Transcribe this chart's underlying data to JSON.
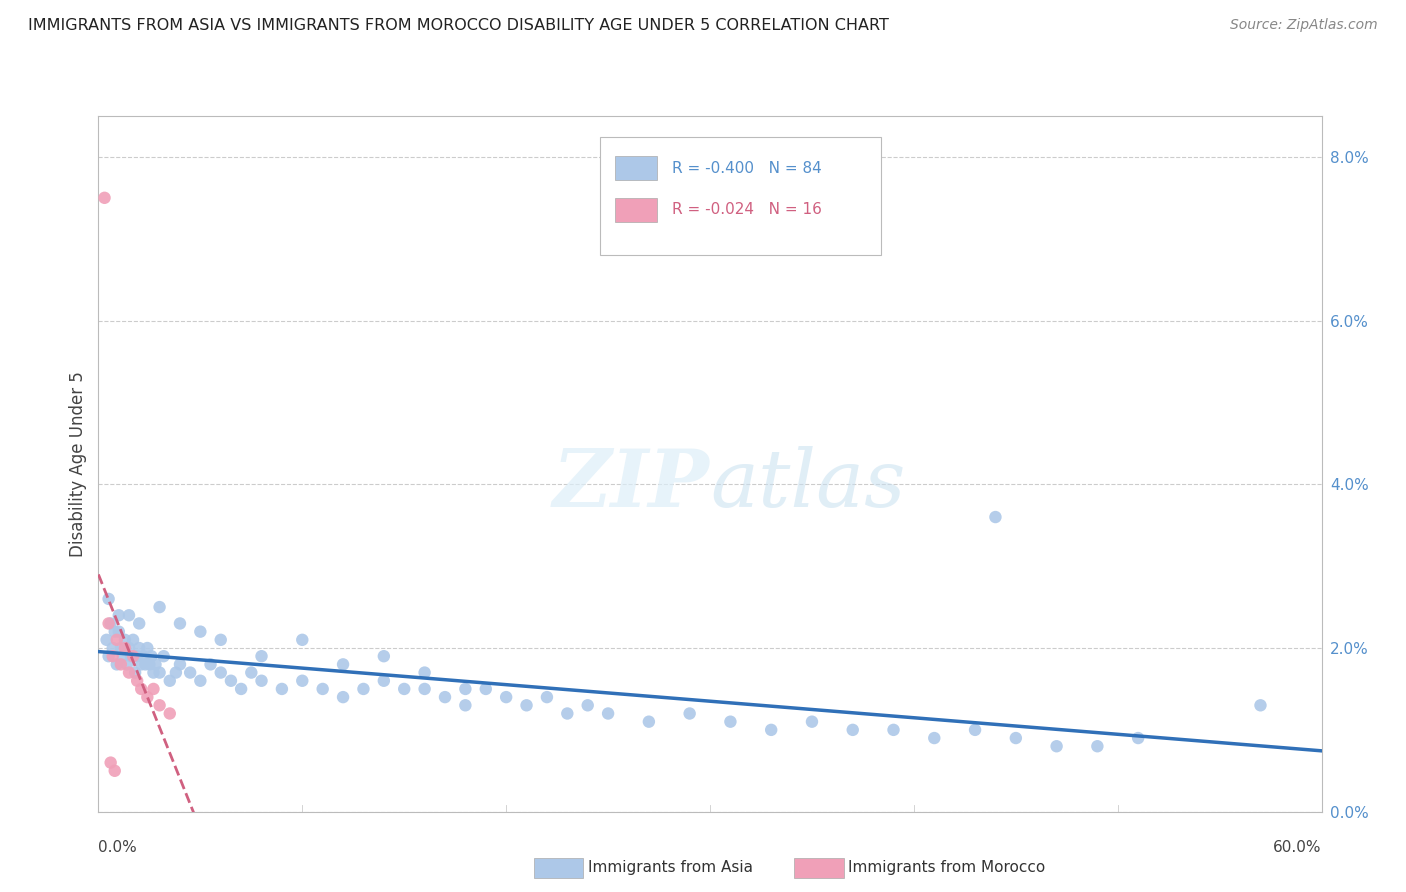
{
  "title": "IMMIGRANTS FROM ASIA VS IMMIGRANTS FROM MOROCCO DISABILITY AGE UNDER 5 CORRELATION CHART",
  "source": "Source: ZipAtlas.com",
  "ylabel": "Disability Age Under 5",
  "color_asia": "#adc8e8",
  "color_morocco": "#f0a0b8",
  "color_asia_line": "#3070b8",
  "color_morocco_line": "#d06080",
  "background_color": "#ffffff",
  "grid_color": "#cccccc",
  "xlim": [
    0.0,
    60.0
  ],
  "ylim": [
    0.0,
    8.5
  ],
  "ytick_vals": [
    0.0,
    2.0,
    4.0,
    6.0,
    8.0
  ],
  "R_asia": -0.4,
  "N_asia": 84,
  "R_morocco": -0.024,
  "N_morocco": 16,
  "asia_x": [
    0.4,
    0.5,
    0.6,
    0.7,
    0.8,
    0.9,
    1.0,
    1.1,
    1.2,
    1.3,
    1.4,
    1.5,
    1.6,
    1.7,
    1.8,
    1.9,
    2.0,
    2.1,
    2.2,
    2.3,
    2.4,
    2.5,
    2.6,
    2.7,
    2.8,
    3.0,
    3.2,
    3.5,
    3.8,
    4.0,
    4.5,
    5.0,
    5.5,
    6.0,
    6.5,
    7.0,
    7.5,
    8.0,
    9.0,
    10.0,
    11.0,
    12.0,
    13.0,
    14.0,
    15.0,
    16.0,
    17.0,
    18.0,
    19.0,
    20.0,
    21.0,
    22.0,
    23.0,
    24.0,
    25.0,
    27.0,
    29.0,
    31.0,
    33.0,
    35.0,
    37.0,
    39.0,
    41.0,
    43.0,
    45.0,
    47.0,
    49.0,
    51.0,
    0.5,
    1.0,
    1.5,
    2.0,
    3.0,
    4.0,
    5.0,
    6.0,
    8.0,
    10.0,
    12.0,
    14.0,
    16.0,
    18.0,
    57.0,
    44.0
  ],
  "asia_y": [
    2.1,
    1.9,
    2.3,
    2.0,
    2.2,
    1.8,
    2.4,
    2.0,
    1.9,
    2.1,
    1.8,
    2.0,
    1.9,
    2.1,
    1.7,
    1.9,
    2.0,
    1.8,
    1.9,
    1.8,
    2.0,
    1.8,
    1.9,
    1.7,
    1.8,
    1.7,
    1.9,
    1.6,
    1.7,
    1.8,
    1.7,
    1.6,
    1.8,
    1.7,
    1.6,
    1.5,
    1.7,
    1.6,
    1.5,
    1.6,
    1.5,
    1.4,
    1.5,
    1.6,
    1.5,
    1.5,
    1.4,
    1.3,
    1.5,
    1.4,
    1.3,
    1.4,
    1.2,
    1.3,
    1.2,
    1.1,
    1.2,
    1.1,
    1.0,
    1.1,
    1.0,
    1.0,
    0.9,
    1.0,
    0.9,
    0.8,
    0.8,
    0.9,
    2.6,
    2.2,
    2.4,
    2.3,
    2.5,
    2.3,
    2.2,
    2.1,
    1.9,
    2.1,
    1.8,
    1.9,
    1.7,
    1.5,
    1.3,
    3.6
  ],
  "morocco_x": [
    0.3,
    0.5,
    0.7,
    0.9,
    1.1,
    1.3,
    1.5,
    1.7,
    1.9,
    2.1,
    2.4,
    2.7,
    3.0,
    3.5,
    0.6,
    0.8
  ],
  "morocco_y": [
    7.5,
    2.3,
    1.9,
    2.1,
    1.8,
    2.0,
    1.7,
    1.9,
    1.6,
    1.5,
    1.4,
    1.5,
    1.3,
    1.2,
    0.6,
    0.5
  ]
}
